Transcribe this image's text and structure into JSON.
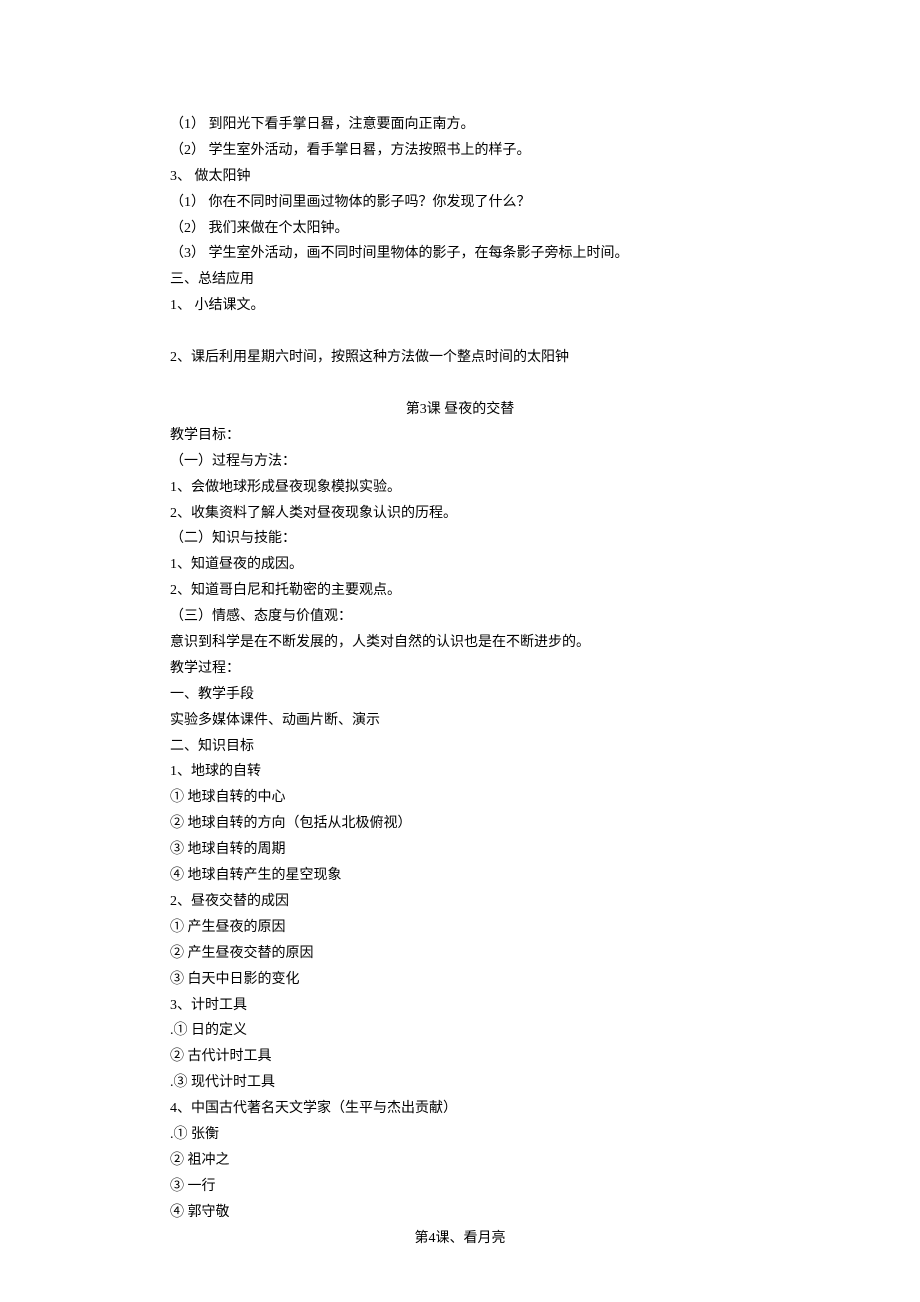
{
  "section1": {
    "line1": "（1）  到阳光下看手掌日晷，注意要面向正南方。",
    "line2": "（2）  学生室外活动，看手掌日晷，方法按照书上的样子。",
    "line3": "3、 做太阳钟",
    "line4": "（1）  你在不同时间里画过物体的影子吗？你发现了什么？",
    "line5": "（2）  我们来做在个太阳钟。",
    "line6": "（3）  学生室外活动，画不同时间里物体的影子，在每条影子旁标上时间。",
    "line7": "三、总结应用",
    "line8": "1、 小结课文。",
    "line9": "2、课后利用星期六时间，按照这种方法做一个整点时间的太阳钟"
  },
  "lesson3": {
    "title": "第3课    昼夜的交替",
    "line1": "教学目标：",
    "line2": "（一）过程与方法：",
    "line3": "1、会做地球形成昼夜现象模拟实验。",
    "line4": "2、收集资料了解人类对昼夜现象认识的历程。",
    "line5": "（二）知识与技能：",
    "line6": "1、知道昼夜的成因。",
    "line7": "2、知道哥白尼和托勒密的主要观点。",
    "line8": "（三）情感、态度与价值观：",
    "line9": "意识到科学是在不断发展的，人类对自然的认识也是在不断进步的。",
    "line10": "教学过程：",
    "line11": "一、教学手段",
    "line12": "实验多媒体课件、动画片断、演示",
    "line13": "二、知识目标",
    "line14": "1、地球的自转",
    "line15": "①  地球自转的中心",
    "line16": "②  地球自转的方向（包括从北极俯视）",
    "line17": "③  地球自转的周期",
    "line18": "④  地球自转产生的星空现象",
    "line19": "2、昼夜交替的成因",
    "line20": "①  产生昼夜的原因",
    "line21": "②  产生昼夜交替的原因",
    "line22": "③  白天中日影的变化",
    "line23": "3、计时工具",
    "line24": ".①  日的定义",
    "line25": "②  古代计时工具",
    "line26": ".③  现代计时工具",
    "line27": "4、中国古代著名天文学家（生平与杰出贡献）",
    "line28": ".①  张衡",
    "line29": "②  祖冲之",
    "line30": "③  一行",
    "line31": "④  郭守敬"
  },
  "lesson4": {
    "title": "第4课、看月亮"
  }
}
